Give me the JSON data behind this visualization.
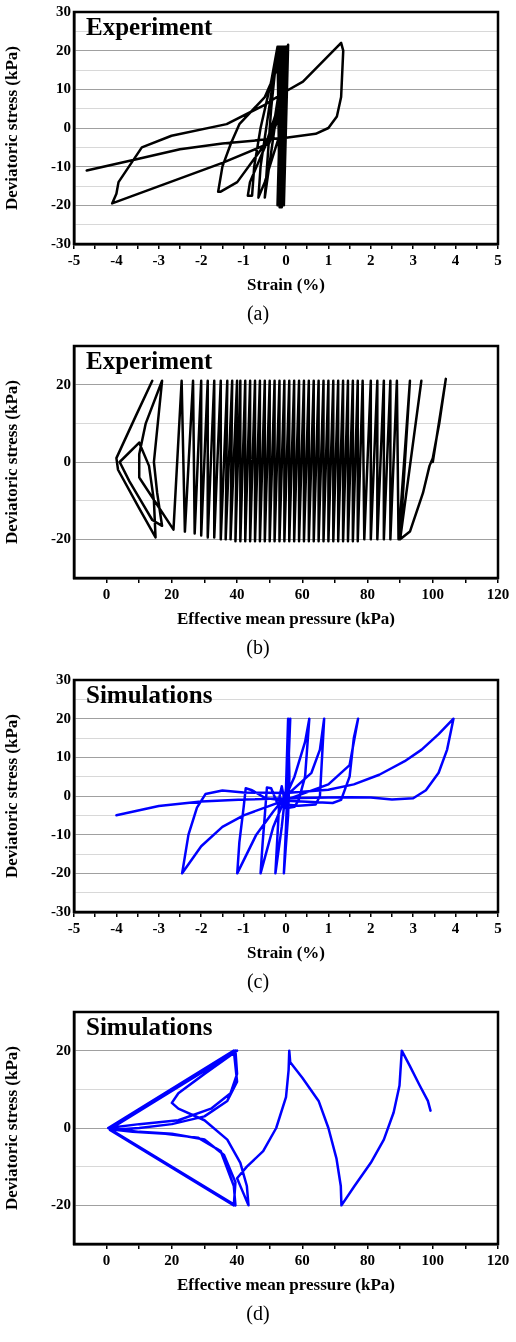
{
  "chart_data": [
    {
      "type": "line",
      "xlabel": "Strain (%)",
      "ylabel": "Deviatoric stress (kPa)",
      "annotations": [
        "Experiment",
        "(a)"
      ],
      "xlim": [
        -5,
        5
      ],
      "xticks": [
        -5,
        {
          "value": -4.5,
          "label": null
        },
        -4,
        {
          "value": -3.5,
          "label": null
        },
        -3,
        {
          "value": -2.5,
          "label": null
        },
        -2,
        {
          "value": -1.5,
          "label": null
        },
        -1,
        {
          "value": -0.5,
          "label": null
        },
        0,
        {
          "value": 0.5,
          "label": null
        },
        1,
        {
          "value": 1.5,
          "label": null
        },
        2,
        {
          "value": 2.5,
          "label": null
        },
        3,
        {
          "value": 3.5,
          "label": null
        },
        4,
        {
          "value": 4.5,
          "label": null
        },
        5
      ],
      "ylim": [
        -30,
        30
      ],
      "yticks": [
        -30,
        {
          "value": -25,
          "label": null
        },
        -20,
        {
          "value": -15,
          "label": null
        },
        -10,
        {
          "value": -5,
          "label": null
        },
        0,
        {
          "value": 5,
          "label": null
        },
        10,
        {
          "value": 15,
          "label": null
        },
        20,
        {
          "value": 25,
          "label": null
        },
        30
      ],
      "grid": "y",
      "legend": false,
      "marker": "none",
      "line_style": "solid",
      "series": [
        {
          "color": "#000000",
          "x": [
            -0.1,
            -0.2,
            -0.15,
            -0.15,
            -0.1,
            -0.1,
            -0.2,
            -0.05,
            -0.12,
            0,
            -0.05,
            0.05,
            -0.18,
            -0.08,
            -0.1,
            0.02,
            -0.15,
            0,
            -0.5,
            -0.35,
            -0.2,
            0,
            -0.1,
            -0.5,
            -0.65,
            -0.6,
            -0.4,
            -0.2,
            0,
            -0.2,
            -0.5,
            -0.85,
            -0.9,
            -0.8,
            -0.75,
            -0.6,
            -0.35,
            -0.2,
            0,
            -0.3,
            -0.55,
            -1.15,
            -1.55,
            -1.6,
            -1.5,
            -1.3,
            -1.1,
            -0.5,
            -0.3,
            0,
            -0.1,
            -0.4,
            -1.5,
            -4.1,
            -4,
            -3.95,
            -3.4,
            -2.7,
            -1.4,
            -0.5,
            0,
            0.4,
            1.3,
            1.35,
            1.3,
            1.2,
            1,
            0.7,
            0,
            -0.5,
            -1.5,
            -2.5,
            -3.5,
            -4.7
          ],
          "values": [
            0,
            21,
            -20,
            21,
            -20.5,
            21,
            -20,
            21,
            -20.5,
            21,
            -20,
            21.5,
            -20,
            21,
            -20,
            21,
            -20.5,
            21,
            -18,
            5,
            21,
            21,
            0,
            -14,
            -18,
            -10,
            5,
            20,
            21,
            5,
            -5,
            -14,
            -17.5,
            -17.5,
            -10,
            0,
            12,
            21,
            21,
            0,
            -5,
            -14,
            -16.5,
            -16.5,
            -10,
            -4,
            1,
            8,
            13,
            21,
            5,
            -4,
            -9,
            -19.5,
            -17,
            -14,
            -5,
            -2,
            1,
            6,
            9.5,
            12,
            22,
            20,
            8,
            3,
            0,
            -1.5,
            -2.5,
            -3,
            -4,
            -5.5,
            -8,
            -11
          ]
        }
      ]
    },
    {
      "type": "line",
      "xlabel": "Effective mean pressure (kPa)",
      "ylabel": "Deviatoric stress (kPa)",
      "annotations": [
        "Experiment",
        "(b)"
      ],
      "xlim": [
        -10,
        120
      ],
      "xticks": [
        0,
        {
          "value": 10,
          "label": null
        },
        20,
        {
          "value": 30,
          "label": null
        },
        40,
        {
          "value": 50,
          "label": null
        },
        60,
        {
          "value": 70,
          "label": null
        },
        80,
        {
          "value": 90,
          "label": null
        },
        100,
        {
          "value": 110,
          "label": null
        },
        120
      ],
      "ylim": [
        -30,
        30
      ],
      "yticks": [
        -20,
        {
          "value": -10,
          "label": null
        },
        0,
        {
          "value": 10,
          "label": null
        },
        20
      ],
      "grid": "y",
      "legend": false,
      "marker": "none",
      "line_style": "solid",
      "series": [
        {
          "color": "#000000",
          "x": [
            14,
            9,
            3,
            3.5,
            10,
            15,
            14.5,
            13,
            10,
            4,
            7,
            14,
            17,
            15.5,
            14.5,
            17,
            12,
            10,
            10,
            20.5,
            23,
            24,
            26.5,
            27,
            29,
            29,
            31,
            31,
            33,
            33,
            35,
            35,
            37,
            36.5,
            38.5,
            38,
            40,
            39.5,
            41,
            41,
            42.5,
            42.5,
            44,
            44,
            45.5,
            45.5,
            47,
            47,
            48.5,
            48.5,
            50,
            50,
            51.5,
            51.5,
            53,
            53,
            54.5,
            54.5,
            56,
            56,
            57.5,
            57.5,
            59,
            59,
            60.5,
            60.5,
            62,
            62,
            63.5,
            63.5,
            65,
            65,
            66.5,
            66.5,
            68,
            68,
            69.5,
            69.5,
            71,
            71,
            72.5,
            72.5,
            74,
            74,
            75.5,
            75.5,
            77,
            77,
            78.5,
            79,
            81,
            81,
            83,
            83,
            85,
            85,
            87,
            87,
            89,
            89.5,
            93,
            90,
            96.5,
            90,
            93,
            97,
            99,
            100,
            102,
            104,
            100
          ],
          "values": [
            21,
            12,
            1,
            -2,
            -12,
            -19.5,
            -10,
            -1,
            5,
            0,
            -5,
            -15,
            -16.5,
            -8,
            0,
            21,
            10,
            2,
            -4,
            -17.5,
            21,
            -18,
            21,
            -18.5,
            21,
            -19,
            21,
            -19.5,
            21,
            -19.5,
            21,
            -20,
            21,
            -20,
            21,
            -20,
            21,
            -20.5,
            21,
            -20.5,
            21,
            -20.5,
            21,
            -20.5,
            21,
            -20.5,
            21,
            -20.5,
            21,
            -20.5,
            21,
            -20.5,
            21,
            -20.5,
            21,
            -20.5,
            21,
            -20.5,
            21,
            -20.5,
            21,
            -20.5,
            21,
            -20.5,
            21,
            -20.5,
            21,
            -20.5,
            21,
            -20.5,
            21,
            -20.5,
            21,
            -20.5,
            21,
            -20.5,
            21,
            -20.5,
            21,
            -20.5,
            21,
            -20.5,
            21,
            -20.5,
            21,
            -20.5,
            21,
            -20.5,
            21,
            -20,
            21,
            -20,
            21,
            -20,
            21,
            -20,
            21,
            -20,
            21,
            -20,
            21,
            -20,
            21,
            -20,
            -18,
            -8,
            -1,
            1,
            10,
            21.5,
            0
          ]
        }
      ]
    },
    {
      "type": "line",
      "xlabel": "Strain (%)",
      "ylabel": "Deviatoric stress (kPa)",
      "annotations": [
        "Simulations",
        "(c)"
      ],
      "xlim": [
        -5,
        5
      ],
      "xticks": [
        -5,
        {
          "value": -4.5,
          "label": null
        },
        -4,
        {
          "value": -3.5,
          "label": null
        },
        -3,
        {
          "value": -2.5,
          "label": null
        },
        -2,
        {
          "value": -1.5,
          "label": null
        },
        -1,
        {
          "value": -0.5,
          "label": null
        },
        0,
        {
          "value": 0.5,
          "label": null
        },
        1,
        {
          "value": 1.5,
          "label": null
        },
        2,
        {
          "value": 2.5,
          "label": null
        },
        3,
        {
          "value": 3.5,
          "label": null
        },
        4,
        {
          "value": 4.5,
          "label": null
        },
        5
      ],
      "ylim": [
        -30,
        30
      ],
      "yticks": [
        -30,
        {
          "value": -25,
          "label": null
        },
        -20,
        {
          "value": -15,
          "label": null
        },
        -10,
        {
          "value": -5,
          "label": null
        },
        0,
        {
          "value": 5,
          "label": null
        },
        10,
        {
          "value": 15,
          "label": null
        },
        20,
        {
          "value": 25,
          "label": null
        },
        30
      ],
      "grid": "y",
      "legend": false,
      "marker": "none",
      "line_style": "solid",
      "series": [
        {
          "color": "#0000ff",
          "x": [
            -4,
            -3,
            -2,
            -1,
            0,
            1,
            1.5,
            2,
            2.5,
            3,
            3.3,
            3.6,
            3.8,
            3.95,
            3.6,
            3.2,
            2.8,
            2.2,
            1.6,
            1,
            0,
            -1,
            -1.5,
            -1.9,
            -2.1,
            -2.3,
            -2.45,
            -2,
            -1.5,
            -1,
            -0.5,
            0,
            0.5,
            1,
            1.5,
            1.7,
            1.6,
            1.5,
            1.3,
            1.1,
            0.5,
            0,
            -0.5,
            -0.8,
            -0.95,
            -1,
            -1.1,
            -1.15,
            -0.7,
            -0.3,
            0,
            0.3,
            0.6,
            0.8,
            0.9,
            0.85,
            0.8,
            0.7,
            0.3,
            -0.2,
            -0.35,
            -0.45,
            -0.5,
            -0.55,
            -0.6,
            -0.3,
            0,
            0.2,
            0.45,
            0.55,
            0.45,
            0.3,
            0.2,
            0,
            -0.1,
            -0.15,
            -0.2,
            -0.25,
            -0.1,
            0,
            0.05,
            0.08,
            0.05,
            -0.05,
            0,
            0.1
          ],
          "values": [
            -5,
            -2.6,
            -1.4,
            -0.9,
            -0.6,
            -0.4,
            -0.3,
            -0.4,
            -0.9,
            -0.6,
            1.5,
            6,
            12,
            20,
            16,
            12,
            9,
            5.5,
            3,
            1.6,
            0.8,
            0.9,
            1.4,
            0.5,
            -3,
            -10,
            -20,
            -13,
            -8,
            -5,
            -3,
            -1,
            1,
            3,
            8,
            20,
            15,
            5,
            -1,
            -1.8,
            -1.5,
            -1.2,
            -0.5,
            1.5,
            2,
            -3,
            -12,
            -20,
            -10,
            -4,
            0,
            3,
            6,
            12,
            20,
            10,
            0,
            -2.2,
            -2.5,
            -2,
            2,
            2.2,
            -5,
            -12,
            -20,
            -8,
            0,
            5,
            14,
            20,
            5,
            -1,
            -2.8,
            -3.2,
            2.5,
            0,
            -10,
            -20,
            -8,
            2,
            20,
            5,
            -5,
            -20,
            -8,
            20
          ]
        }
      ]
    },
    {
      "type": "line",
      "xlabel": "Effective mean pressure (kPa)",
      "ylabel": "Deviatoric stress (kPa)",
      "annotations": [
        "Simulations",
        "(d)"
      ],
      "xlim": [
        -10,
        120
      ],
      "xticks": [
        0,
        {
          "value": 10,
          "label": null
        },
        20,
        {
          "value": 30,
          "label": null
        },
        40,
        {
          "value": 50,
          "label": null
        },
        60,
        {
          "value": 70,
          "label": null
        },
        80,
        {
          "value": 90,
          "label": null
        },
        100,
        {
          "value": 110,
          "label": null
        },
        120
      ],
      "ylim": [
        -30,
        30
      ],
      "yticks": [
        -20,
        {
          "value": -10,
          "label": null
        },
        0,
        {
          "value": 10,
          "label": null
        },
        20
      ],
      "grid": "y",
      "legend": false,
      "marker": "none",
      "line_style": "solid",
      "series": [
        {
          "color": "#0000ff",
          "x": [
            0.5,
            39,
            40,
            37,
            30,
            20,
            10,
            1,
            39,
            39.5,
            36,
            30,
            20,
            10,
            1,
            39.5,
            40,
            38,
            32,
            22,
            10,
            0.5,
            39.5,
            39,
            35,
            28,
            18,
            8,
            1,
            40,
            30,
            22,
            20,
            22,
            30,
            37,
            41,
            43,
            43.5,
            41.5,
            40,
            43,
            48,
            52,
            55,
            55.8,
            56,
            56.3,
            60,
            65,
            68,
            70.5,
            71.8,
            72,
            76,
            81,
            85,
            88,
            89.8,
            90.5,
            93,
            96,
            98.5,
            99.3
          ],
          "values": [
            0,
            20,
            12,
            7,
            3,
            1,
            0,
            -0.5,
            -20,
            -14,
            -7,
            -3,
            -1.5,
            -1,
            0,
            20,
            14,
            9,
            5,
            2,
            1,
            0,
            -20,
            -15,
            -6,
            -2.5,
            -1.5,
            -1,
            -0.3,
            20,
            14,
            9,
            6.5,
            5,
            2,
            -3,
            -9,
            -15,
            -20,
            -16,
            -13,
            -10,
            -6,
            0,
            8,
            15,
            20,
            17,
            13,
            7,
            0,
            -8,
            -15,
            -20,
            -15,
            -9,
            -3,
            4,
            11,
            20,
            16,
            11,
            7,
            4.5
          ]
        }
      ]
    }
  ]
}
